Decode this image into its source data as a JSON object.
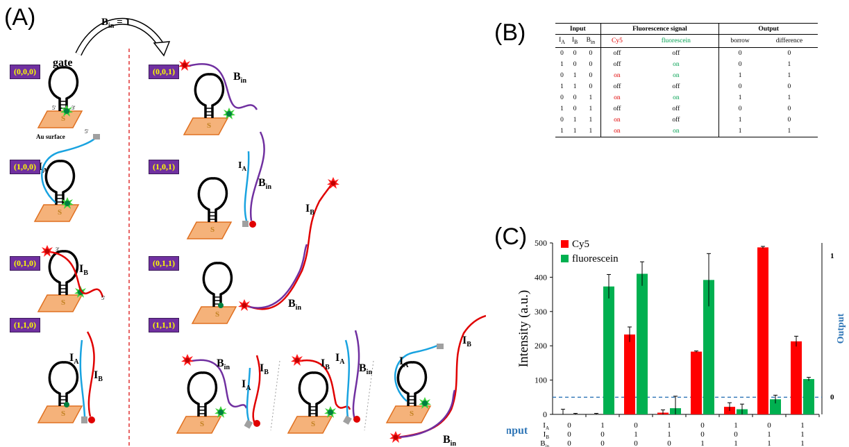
{
  "panel_a": {
    "letter": "(A)",
    "arrow_label": "B",
    "arrow_label_sub": "in",
    "arrow_label_value": " = 1",
    "states": [
      "(0,0,0)",
      "(1,0,0)",
      "(0,1,0)",
      "(1,1,0)",
      "(0,0,1)",
      "(1,0,1)",
      "(0,1,1)",
      "(1,1,1)"
    ],
    "gate_label": "gate",
    "surface_label": "Au surface",
    "strand_ia": "I",
    "strand_ia_sub": "A",
    "strand_ib": "I",
    "strand_ib_sub": "B",
    "strand_bin": "B",
    "strand_bin_sub": "in",
    "prime5": "5'",
    "prime3": "3'",
    "sulfur": "S"
  },
  "panel_b": {
    "letter": "(B)",
    "group_headers": [
      "Input",
      "Fluorescence signal",
      "Output"
    ],
    "sub_headers": [
      "I",
      "I",
      "B",
      "Cy5",
      "fluorescein",
      "borrow",
      "difference"
    ],
    "sub_header_subs": [
      "A",
      "B",
      "in",
      "",
      "",
      "",
      ""
    ],
    "rows": [
      [
        "0",
        "0",
        "0",
        "off",
        "off",
        "0",
        "0"
      ],
      [
        "1",
        "0",
        "0",
        "off",
        "on",
        "0",
        "1"
      ],
      [
        "0",
        "1",
        "0",
        "on",
        "on",
        "1",
        "1"
      ],
      [
        "1",
        "1",
        "0",
        "off",
        "off",
        "0",
        "0"
      ],
      [
        "0",
        "0",
        "1",
        "on",
        "on",
        "1",
        "1"
      ],
      [
        "1",
        "0",
        "1",
        "off",
        "off",
        "0",
        "0"
      ],
      [
        "0",
        "1",
        "1",
        "on",
        "off",
        "1",
        "0"
      ],
      [
        "1",
        "1",
        "1",
        "on",
        "on",
        "1",
        "1"
      ]
    ],
    "colors": {
      "on_cy5": "#e00000",
      "on_fluorescein": "#00a050"
    }
  },
  "panel_c": {
    "letter": "(C)",
    "input_label": "Input",
    "output_label": "Output",
    "output_ticks": [
      "1",
      "0"
    ],
    "input_rows": [
      {
        "label": "I",
        "sub": "A",
        "values": [
          "0",
          "1",
          "0",
          "1",
          "0",
          "1",
          "0",
          "1"
        ]
      },
      {
        "label": "I",
        "sub": "B",
        "values": [
          "0",
          "0",
          "1",
          "1",
          "0",
          "0",
          "1",
          "1"
        ]
      },
      {
        "label": "B",
        "sub": "in",
        "values": [
          "0",
          "0",
          "0",
          "0",
          "1",
          "1",
          "1",
          "1"
        ]
      }
    ]
  },
  "chart_data": {
    "type": "bar",
    "categories": [
      "000",
      "100",
      "010",
      "110",
      "001",
      "101",
      "011",
      "111"
    ],
    "ylabel": "Intensity  (a.u.)",
    "ylim": [
      0,
      500
    ],
    "yticks": [
      0,
      100,
      200,
      300,
      400,
      500
    ],
    "threshold": 50,
    "legend_placement": "top-left",
    "series": [
      {
        "name": "Cy5",
        "color": "#ff0000",
        "values": [
          0,
          0,
          233,
          5,
          183,
          22,
          487,
          213
        ],
        "errors": [
          15,
          3,
          22,
          8,
          2,
          12,
          3,
          15
        ]
      },
      {
        "name": "fluorescein",
        "color": "#00b050",
        "values": [
          0,
          373,
          410,
          18,
          392,
          15,
          44,
          103
        ],
        "errors": [
          3,
          35,
          35,
          35,
          77,
          15,
          12,
          5
        ]
      }
    ],
    "grid": false
  }
}
